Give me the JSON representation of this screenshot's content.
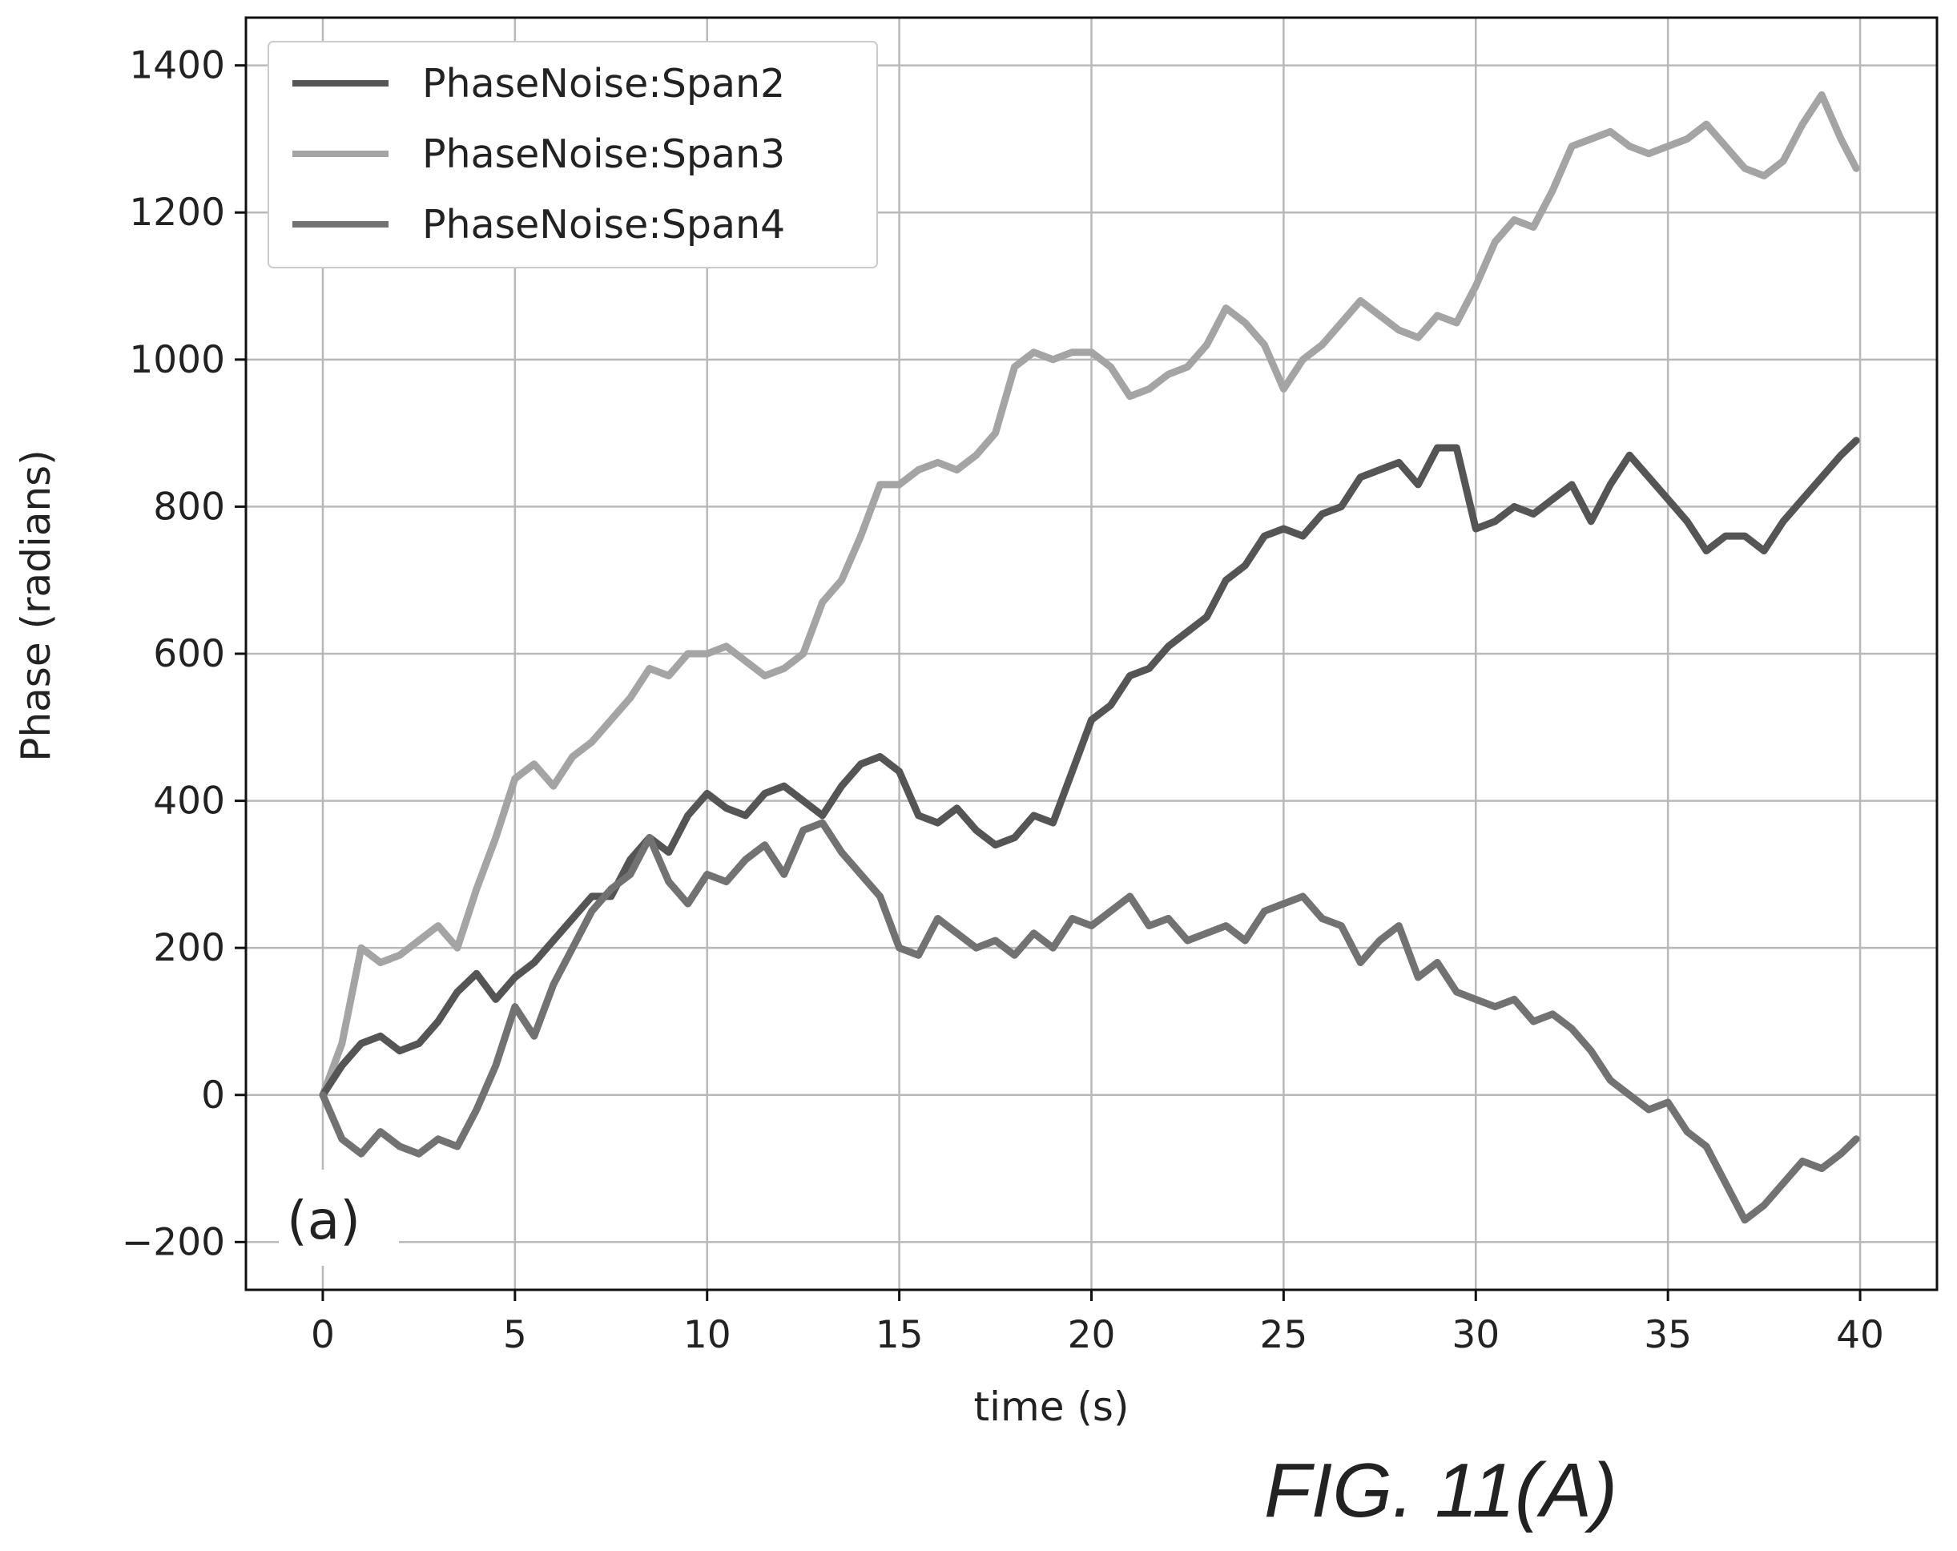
{
  "figure_caption": "FIG. 11(A)",
  "panel_label": "(a)",
  "chart_data": {
    "type": "line",
    "xlabel": "time (s)",
    "ylabel": "Phase (radians)",
    "xlim": [
      -2,
      42
    ],
    "ylim": [
      -265,
      1465
    ],
    "x_ticks": [
      0,
      5,
      10,
      15,
      20,
      25,
      30,
      35,
      40
    ],
    "y_ticks": [
      -200,
      0,
      200,
      400,
      600,
      800,
      1000,
      1200,
      1400
    ],
    "x_tick_labels": [
      "0",
      "5",
      "10",
      "15",
      "20",
      "25",
      "30",
      "35",
      "40"
    ],
    "y_tick_labels": [
      "−200",
      "0",
      "200",
      "400",
      "600",
      "800",
      "1000",
      "1200",
      "1400"
    ],
    "grid": true,
    "legend_position": "top-left",
    "series": [
      {
        "name": "PhaseNoise:Span2",
        "color": "#555555",
        "points": [
          [
            0,
            0
          ],
          [
            0.5,
            40
          ],
          [
            1,
            70
          ],
          [
            1.5,
            80
          ],
          [
            2,
            60
          ],
          [
            2.5,
            70
          ],
          [
            3,
            100
          ],
          [
            3.5,
            140
          ],
          [
            4,
            165
          ],
          [
            4.5,
            130
          ],
          [
            5,
            160
          ],
          [
            5.5,
            180
          ],
          [
            6,
            210
          ],
          [
            6.5,
            240
          ],
          [
            7,
            270
          ],
          [
            7.5,
            270
          ],
          [
            8,
            320
          ],
          [
            8.5,
            350
          ],
          [
            9,
            330
          ],
          [
            9.5,
            380
          ],
          [
            10,
            410
          ],
          [
            10.5,
            390
          ],
          [
            11,
            380
          ],
          [
            11.5,
            410
          ],
          [
            12,
            420
          ],
          [
            12.5,
            400
          ],
          [
            13,
            380
          ],
          [
            13.5,
            420
          ],
          [
            14,
            450
          ],
          [
            14.5,
            460
          ],
          [
            15,
            440
          ],
          [
            15.5,
            380
          ],
          [
            16,
            370
          ],
          [
            16.5,
            390
          ],
          [
            17,
            360
          ],
          [
            17.5,
            340
          ],
          [
            18,
            350
          ],
          [
            18.5,
            380
          ],
          [
            19,
            370
          ],
          [
            19.5,
            440
          ],
          [
            20,
            510
          ],
          [
            20.5,
            530
          ],
          [
            21,
            570
          ],
          [
            21.5,
            580
          ],
          [
            22,
            610
          ],
          [
            22.5,
            630
          ],
          [
            23,
            650
          ],
          [
            23.5,
            700
          ],
          [
            24,
            720
          ],
          [
            24.5,
            760
          ],
          [
            25,
            770
          ],
          [
            25.5,
            760
          ],
          [
            26,
            790
          ],
          [
            26.5,
            800
          ],
          [
            27,
            840
          ],
          [
            27.5,
            850
          ],
          [
            28,
            860
          ],
          [
            28.5,
            830
          ],
          [
            29,
            880
          ],
          [
            29.5,
            880
          ],
          [
            30,
            770
          ],
          [
            30.5,
            780
          ],
          [
            31,
            800
          ],
          [
            31.5,
            790
          ],
          [
            32,
            810
          ],
          [
            32.5,
            830
          ],
          [
            33,
            780
          ],
          [
            33.5,
            830
          ],
          [
            34,
            870
          ],
          [
            34.5,
            840
          ],
          [
            35,
            810
          ],
          [
            35.5,
            780
          ],
          [
            36,
            740
          ],
          [
            36.5,
            760
          ],
          [
            37,
            760
          ],
          [
            37.5,
            740
          ],
          [
            38,
            780
          ],
          [
            38.5,
            810
          ],
          [
            39,
            840
          ],
          [
            39.5,
            870
          ],
          [
            39.9,
            890
          ]
        ]
      },
      {
        "name": "PhaseNoise:Span3",
        "color": "#a4a4a4",
        "points": [
          [
            0,
            0
          ],
          [
            0.5,
            70
          ],
          [
            1,
            200
          ],
          [
            1.5,
            180
          ],
          [
            2,
            190
          ],
          [
            2.5,
            210
          ],
          [
            3,
            230
          ],
          [
            3.5,
            200
          ],
          [
            4,
            280
          ],
          [
            4.5,
            350
          ],
          [
            5,
            430
          ],
          [
            5.5,
            450
          ],
          [
            6,
            420
          ],
          [
            6.5,
            460
          ],
          [
            7,
            480
          ],
          [
            7.5,
            510
          ],
          [
            8,
            540
          ],
          [
            8.5,
            580
          ],
          [
            9,
            570
          ],
          [
            9.5,
            600
          ],
          [
            10,
            600
          ],
          [
            10.5,
            610
          ],
          [
            11,
            590
          ],
          [
            11.5,
            570
          ],
          [
            12,
            580
          ],
          [
            12.5,
            600
          ],
          [
            13,
            670
          ],
          [
            13.5,
            700
          ],
          [
            14,
            760
          ],
          [
            14.5,
            830
          ],
          [
            15,
            830
          ],
          [
            15.5,
            850
          ],
          [
            16,
            860
          ],
          [
            16.5,
            850
          ],
          [
            17,
            870
          ],
          [
            17.5,
            900
          ],
          [
            18,
            990
          ],
          [
            18.5,
            1010
          ],
          [
            19,
            1000
          ],
          [
            19.5,
            1010
          ],
          [
            20,
            1010
          ],
          [
            20.5,
            990
          ],
          [
            21,
            950
          ],
          [
            21.5,
            960
          ],
          [
            22,
            980
          ],
          [
            22.5,
            990
          ],
          [
            23,
            1020
          ],
          [
            23.5,
            1070
          ],
          [
            24,
            1050
          ],
          [
            24.5,
            1020
          ],
          [
            25,
            960
          ],
          [
            25.5,
            1000
          ],
          [
            26,
            1020
          ],
          [
            26.5,
            1050
          ],
          [
            27,
            1080
          ],
          [
            27.5,
            1060
          ],
          [
            28,
            1040
          ],
          [
            28.5,
            1030
          ],
          [
            29,
            1060
          ],
          [
            29.5,
            1050
          ],
          [
            30,
            1100
          ],
          [
            30.5,
            1160
          ],
          [
            31,
            1190
          ],
          [
            31.5,
            1180
          ],
          [
            32,
            1230
          ],
          [
            32.5,
            1290
          ],
          [
            33,
            1300
          ],
          [
            33.5,
            1310
          ],
          [
            34,
            1290
          ],
          [
            34.5,
            1280
          ],
          [
            35,
            1290
          ],
          [
            35.5,
            1300
          ],
          [
            36,
            1320
          ],
          [
            36.5,
            1290
          ],
          [
            37,
            1260
          ],
          [
            37.5,
            1250
          ],
          [
            38,
            1270
          ],
          [
            38.5,
            1320
          ],
          [
            39,
            1360
          ],
          [
            39.5,
            1300
          ],
          [
            39.9,
            1260
          ]
        ]
      },
      {
        "name": "PhaseNoise:Span4",
        "color": "#727272",
        "points": [
          [
            0,
            0
          ],
          [
            0.5,
            -60
          ],
          [
            1,
            -80
          ],
          [
            1.5,
            -50
          ],
          [
            2,
            -70
          ],
          [
            2.5,
            -80
          ],
          [
            3,
            -60
          ],
          [
            3.5,
            -70
          ],
          [
            4,
            -20
          ],
          [
            4.5,
            40
          ],
          [
            5,
            120
          ],
          [
            5.5,
            80
          ],
          [
            6,
            150
          ],
          [
            6.5,
            200
          ],
          [
            7,
            250
          ],
          [
            7.5,
            280
          ],
          [
            8,
            300
          ],
          [
            8.5,
            350
          ],
          [
            9,
            290
          ],
          [
            9.5,
            260
          ],
          [
            10,
            300
          ],
          [
            10.5,
            290
          ],
          [
            11,
            320
          ],
          [
            11.5,
            340
          ],
          [
            12,
            300
          ],
          [
            12.5,
            360
          ],
          [
            13,
            370
          ],
          [
            13.5,
            330
          ],
          [
            14,
            300
          ],
          [
            14.5,
            270
          ],
          [
            15,
            200
          ],
          [
            15.5,
            190
          ],
          [
            16,
            240
          ],
          [
            16.5,
            220
          ],
          [
            17,
            200
          ],
          [
            17.5,
            210
          ],
          [
            18,
            190
          ],
          [
            18.5,
            220
          ],
          [
            19,
            200
          ],
          [
            19.5,
            240
          ],
          [
            20,
            230
          ],
          [
            20.5,
            250
          ],
          [
            21,
            270
          ],
          [
            21.5,
            230
          ],
          [
            22,
            240
          ],
          [
            22.5,
            210
          ],
          [
            23,
            220
          ],
          [
            23.5,
            230
          ],
          [
            24,
            210
          ],
          [
            24.5,
            250
          ],
          [
            25,
            260
          ],
          [
            25.5,
            270
          ],
          [
            26,
            240
          ],
          [
            26.5,
            230
          ],
          [
            27,
            180
          ],
          [
            27.5,
            210
          ],
          [
            28,
            230
          ],
          [
            28.5,
            160
          ],
          [
            29,
            180
          ],
          [
            29.5,
            140
          ],
          [
            30,
            130
          ],
          [
            30.5,
            120
          ],
          [
            31,
            130
          ],
          [
            31.5,
            100
          ],
          [
            32,
            110
          ],
          [
            32.5,
            90
          ],
          [
            33,
            60
          ],
          [
            33.5,
            20
          ],
          [
            34,
            0
          ],
          [
            34.5,
            -20
          ],
          [
            35,
            -10
          ],
          [
            35.5,
            -50
          ],
          [
            36,
            -70
          ],
          [
            36.5,
            -120
          ],
          [
            37,
            -170
          ],
          [
            37.5,
            -150
          ],
          [
            38,
            -120
          ],
          [
            38.5,
            -90
          ],
          [
            39,
            -100
          ],
          [
            39.5,
            -80
          ],
          [
            39.9,
            -60
          ]
        ]
      }
    ]
  }
}
